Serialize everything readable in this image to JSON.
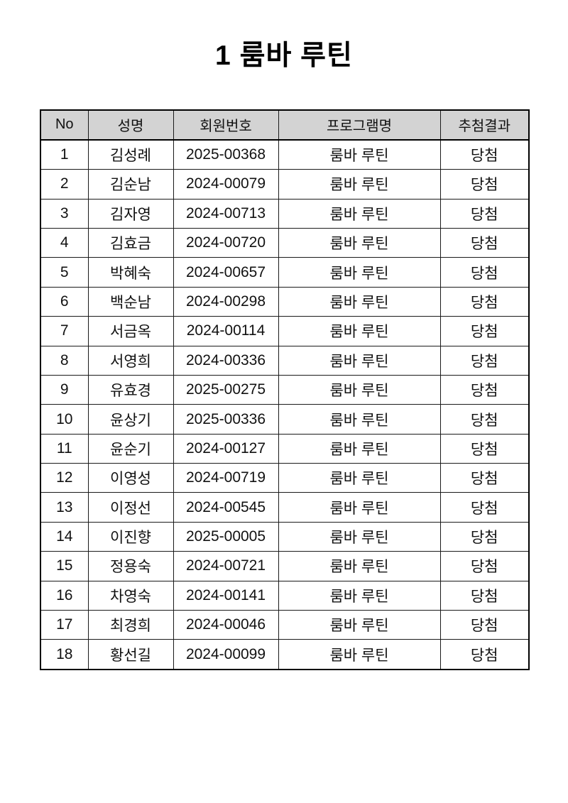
{
  "page": {
    "title": "1 룸바 루틴"
  },
  "colors": {
    "header_bg": "#d3d3d3",
    "border": "#000000",
    "text": "#111111",
    "page_bg": "#ffffff"
  },
  "table": {
    "columns": [
      "No",
      "성명",
      "회원번호",
      "프로그램명",
      "추첨결과"
    ],
    "rows": [
      [
        "1",
        "김성례",
        "2025-00368",
        "룸바 루틴",
        "당첨"
      ],
      [
        "2",
        "김순남",
        "2024-00079",
        "룸바 루틴",
        "당첨"
      ],
      [
        "3",
        "김자영",
        "2024-00713",
        "룸바 루틴",
        "당첨"
      ],
      [
        "4",
        "김효금",
        "2024-00720",
        "룸바 루틴",
        "당첨"
      ],
      [
        "5",
        "박혜숙",
        "2024-00657",
        "룸바 루틴",
        "당첨"
      ],
      [
        "6",
        "백순남",
        "2024-00298",
        "룸바 루틴",
        "당첨"
      ],
      [
        "7",
        "서금옥",
        "2024-00114",
        "룸바 루틴",
        "당첨"
      ],
      [
        "8",
        "서영희",
        "2024-00336",
        "룸바 루틴",
        "당첨"
      ],
      [
        "9",
        "유효경",
        "2025-00275",
        "룸바 루틴",
        "당첨"
      ],
      [
        "10",
        "윤상기",
        "2025-00336",
        "룸바 루틴",
        "당첨"
      ],
      [
        "11",
        "윤순기",
        "2024-00127",
        "룸바 루틴",
        "당첨"
      ],
      [
        "12",
        "이영성",
        "2024-00719",
        "룸바 루틴",
        "당첨"
      ],
      [
        "13",
        "이정선",
        "2024-00545",
        "룸바 루틴",
        "당첨"
      ],
      [
        "14",
        "이진향",
        "2025-00005",
        "룸바 루틴",
        "당첨"
      ],
      [
        "15",
        "정용숙",
        "2024-00721",
        "룸바 루틴",
        "당첨"
      ],
      [
        "16",
        "차영숙",
        "2024-00141",
        "룸바 루틴",
        "당첨"
      ],
      [
        "17",
        "최경희",
        "2024-00046",
        "룸바 루틴",
        "당첨"
      ],
      [
        "18",
        "황선길",
        "2024-00099",
        "룸바 루틴",
        "당첨"
      ]
    ],
    "cell_names": [
      "cell-no",
      "cell-name",
      "cell-member-number",
      "cell-program-name",
      "cell-draw-result"
    ]
  }
}
